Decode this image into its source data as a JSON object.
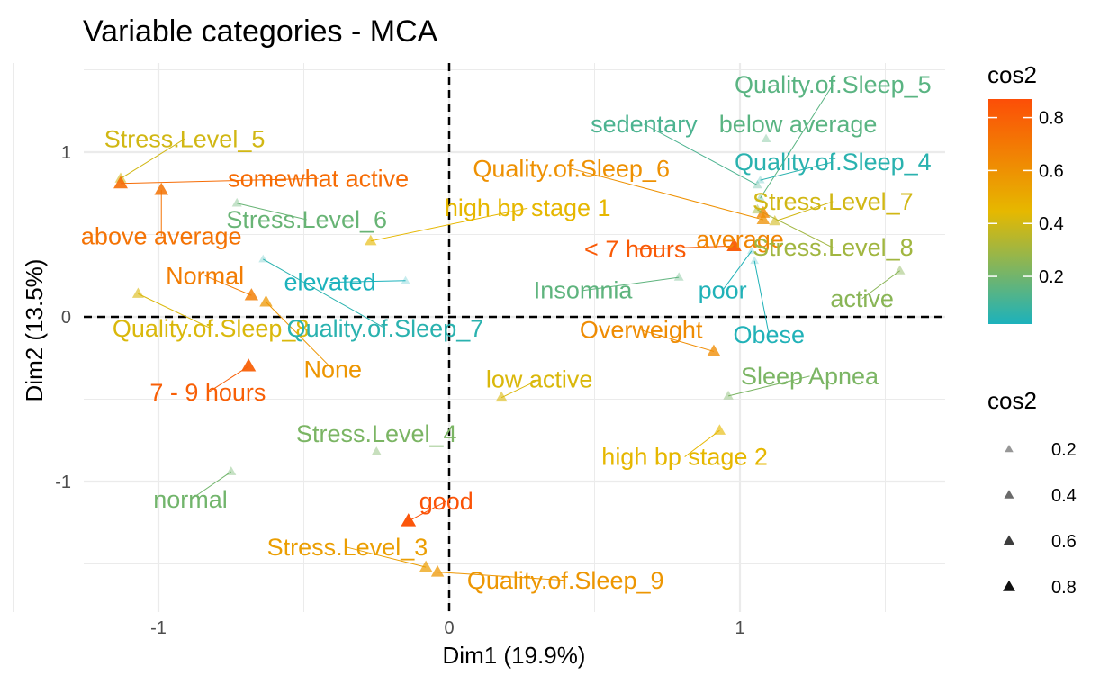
{
  "chart_data": {
    "type": "scatter",
    "title": "Variable categories - MCA",
    "xlabel": "Dim1 (19.9%)",
    "ylabel": "Dim2 (13.5%)",
    "xlim": [
      -1.3,
      1.7
    ],
    "ylim": [
      -1.75,
      1.5
    ],
    "x_ticks": [
      -1,
      0,
      1
    ],
    "y_ticks": [
      -1,
      0,
      1
    ],
    "grid": true,
    "reference_lines": {
      "x": 0,
      "y": 0
    },
    "points": [
      {
        "label": "Stress.Level_5",
        "x": -1.13,
        "y": 0.84,
        "lx": -0.91,
        "ly": 1.08,
        "cos2": 0.4
      },
      {
        "label": "somewhat active",
        "x": -1.13,
        "y": 0.81,
        "lx": -0.45,
        "ly": 0.84,
        "cos2": 0.75
      },
      {
        "label": "above average",
        "x": -0.99,
        "y": 0.77,
        "lx": -0.99,
        "ly": 0.49,
        "cos2": 0.72
      },
      {
        "label": "Stress.Level_6",
        "x": -0.73,
        "y": 0.69,
        "lx": -0.49,
        "ly": 0.59,
        "cos2": 0.18
      },
      {
        "label": "high bp stage 1",
        "x": -0.27,
        "y": 0.46,
        "lx": 0.27,
        "ly": 0.66,
        "cos2": 0.45
      },
      {
        "label": "elevated",
        "x": -0.15,
        "y": 0.22,
        "lx": -0.41,
        "ly": 0.21,
        "cos2": 0.02
      },
      {
        "label": "Normal",
        "x": -0.68,
        "y": 0.13,
        "lx": -0.84,
        "ly": 0.25,
        "cos2": 0.68
      },
      {
        "label": "Quality.of.Sleep_8",
        "x": -1.07,
        "y": 0.14,
        "lx": -0.82,
        "ly": -0.07,
        "cos2": 0.42
      },
      {
        "label": "None",
        "x": -0.63,
        "y": 0.09,
        "lx": -0.4,
        "ly": -0.32,
        "cos2": 0.58
      },
      {
        "label": "Quality.of.Sleep_7",
        "x": -0.64,
        "y": 0.35,
        "lx": -0.22,
        "ly": -0.07,
        "cos2": 0.05
      },
      {
        "label": "7 - 9 hours",
        "x": -0.69,
        "y": -0.3,
        "lx": -0.83,
        "ly": -0.46,
        "cos2": 0.8
      },
      {
        "label": "Stress.Level_4",
        "x": -0.25,
        "y": -0.82,
        "lx": -0.25,
        "ly": -0.71,
        "cos2": 0.22
      },
      {
        "label": "normal",
        "x": -0.75,
        "y": -0.94,
        "lx": -0.89,
        "ly": -1.11,
        "cos2": 0.2
      },
      {
        "label": "good",
        "x": -0.14,
        "y": -1.24,
        "lx": -0.01,
        "ly": -1.12,
        "cos2": 0.85
      },
      {
        "label": "Stress.Level_3",
        "x": -0.08,
        "y": -1.52,
        "lx": -0.35,
        "ly": -1.4,
        "cos2": 0.55
      },
      {
        "label": "Quality.of.Sleep_9",
        "x": -0.04,
        "y": -1.55,
        "lx": 0.4,
        "ly": -1.6,
        "cos2": 0.58
      },
      {
        "label": "low active",
        "x": 0.18,
        "y": -0.49,
        "lx": 0.31,
        "ly": -0.38,
        "cos2": 0.42
      },
      {
        "label": "Overweight",
        "x": 0.91,
        "y": -0.21,
        "lx": 0.66,
        "ly": -0.08,
        "cos2": 0.62
      },
      {
        "label": "Obese",
        "x": 1.05,
        "y": 0.34,
        "lx": 1.1,
        "ly": -0.11,
        "cos2": 0.03
      },
      {
        "label": "Sleep Apnea",
        "x": 0.96,
        "y": -0.48,
        "lx": 1.24,
        "ly": -0.36,
        "cos2": 0.22
      },
      {
        "label": "high bp stage 2",
        "x": 0.93,
        "y": -0.69,
        "lx": 0.81,
        "ly": -0.85,
        "cos2": 0.45
      },
      {
        "label": "Insomnia",
        "x": 0.79,
        "y": 0.24,
        "lx": 0.46,
        "ly": 0.16,
        "cos2": 0.16
      },
      {
        "label": "poor",
        "x": 1.04,
        "y": 0.4,
        "lx": 0.94,
        "ly": 0.16,
        "cos2": 0.03
      },
      {
        "label": "< 7 hours",
        "x": 0.98,
        "y": 0.43,
        "lx": 0.64,
        "ly": 0.41,
        "cos2": 0.82
      },
      {
        "label": "average",
        "x": 1.08,
        "y": 0.63,
        "lx": 1.0,
        "ly": 0.47,
        "cos2": 0.65
      },
      {
        "label": "Quality.of.Sleep_6",
        "x": 1.08,
        "y": 0.59,
        "lx": 0.42,
        "ly": 0.9,
        "cos2": 0.6
      },
      {
        "label": "Stress.Level_7",
        "x": 1.12,
        "y": 0.58,
        "lx": 1.32,
        "ly": 0.7,
        "cos2": 0.4
      },
      {
        "label": "Stress.Level_8",
        "x": 1.06,
        "y": 0.65,
        "lx": 1.32,
        "ly": 0.42,
        "cos2": 0.3
      },
      {
        "label": "Quality.of.Sleep_5",
        "x": 1.07,
        "y": 0.72,
        "lx": 1.32,
        "ly": 1.41,
        "cos2": 0.15
      },
      {
        "label": "below average",
        "x": 1.09,
        "y": 1.08,
        "lx": 1.2,
        "ly": 1.17,
        "cos2": 0.15
      },
      {
        "label": "sedentary",
        "x": 1.06,
        "y": 0.8,
        "lx": 0.67,
        "ly": 1.17,
        "cos2": 0.12
      },
      {
        "label": "Quality.of.Sleep_4",
        "x": 1.07,
        "y": 0.83,
        "lx": 1.32,
        "ly": 0.94,
        "cos2": 0.05
      },
      {
        "label": "active",
        "x": 1.55,
        "y": 0.28,
        "lx": 1.42,
        "ly": 0.11,
        "cos2": 0.25
      }
    ],
    "legend": {
      "color_title": "cos2",
      "color_ticks": [
        0.2,
        0.4,
        0.6,
        0.8
      ],
      "color_range": [
        0.02,
        0.87
      ],
      "size_title": "cos2",
      "size_entries": [
        0.2,
        0.4,
        0.6,
        0.8
      ],
      "placement": "right"
    },
    "colors": {
      "low": "#1CB2BC",
      "mid": "#E6B800",
      "high": "#FC4E07",
      "reference_line": "#000000",
      "grid": "#EBEBEB"
    }
  }
}
